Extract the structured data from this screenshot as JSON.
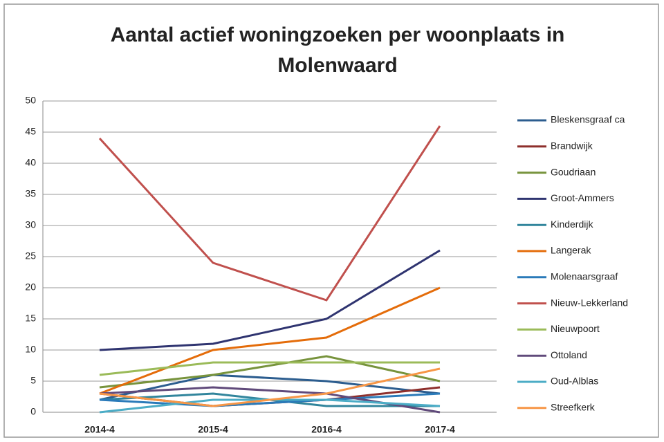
{
  "chart_data": {
    "type": "line",
    "title": "Aantal actief woningzoeken per woonplaats in Molenwaard",
    "categories": [
      "2014-4",
      "2015-4",
      "2016-4",
      "2017-4"
    ],
    "series": [
      {
        "name": "Bleskensgraaf ca",
        "color": "#2c5d8f",
        "values": [
          2,
          6,
          5,
          3
        ]
      },
      {
        "name": "Brandwijk",
        "color": "#8e2f2c",
        "values": [
          3,
          1,
          2,
          4
        ]
      },
      {
        "name": "Goudriaan",
        "color": "#77933c",
        "values": [
          4,
          6,
          9,
          5
        ]
      },
      {
        "name": "Groot-Ammers",
        "color": "#2f3470",
        "values": [
          10,
          11,
          15,
          26
        ]
      },
      {
        "name": "Kinderdijk",
        "color": "#31859c",
        "values": [
          2,
          3,
          1,
          1
        ]
      },
      {
        "name": "Langerak",
        "color": "#e46c0a",
        "values": [
          3,
          10,
          12,
          20
        ]
      },
      {
        "name": "Molenaarsgraaf",
        "color": "#2a7ab9",
        "values": [
          2,
          1,
          2,
          3
        ]
      },
      {
        "name": "Nieuw-Lekkerland",
        "color": "#c0504d",
        "values": [
          44,
          24,
          18,
          46
        ]
      },
      {
        "name": "Nieuwpoort",
        "color": "#9bbb59",
        "values": [
          6,
          8,
          8,
          8
        ]
      },
      {
        "name": "Ottoland",
        "color": "#604a7b",
        "values": [
          3,
          4,
          3,
          0
        ]
      },
      {
        "name": "Oud-Alblas",
        "color": "#4bacc6",
        "values": [
          0,
          2,
          2,
          1
        ]
      },
      {
        "name": "Streefkerk",
        "color": "#f79646",
        "values": [
          3,
          1,
          3,
          7
        ]
      }
    ],
    "ylim": [
      0,
      50
    ],
    "yticks": [
      0,
      5,
      10,
      15,
      20,
      25,
      30,
      35,
      40,
      45,
      50
    ],
    "grid": true
  }
}
